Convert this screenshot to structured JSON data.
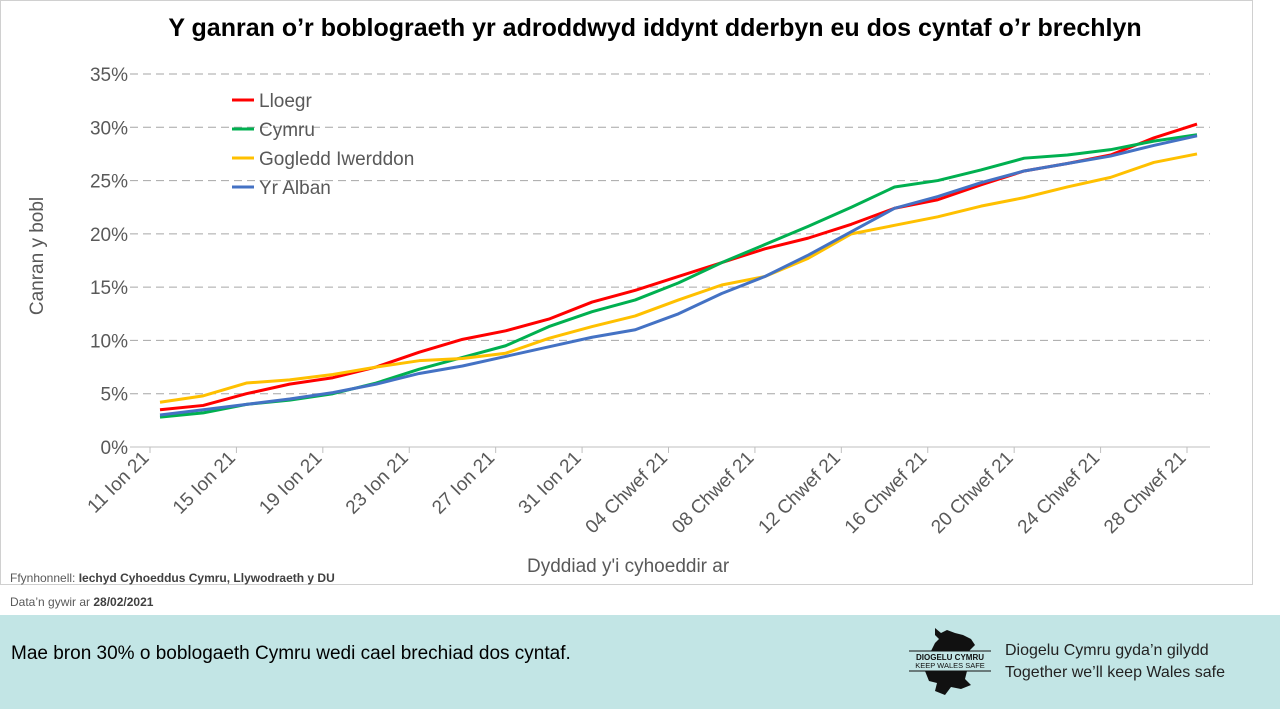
{
  "chart_data": {
    "type": "line",
    "title": "Y ganran o’r boblograeth yr adroddwyd iddynt dderbyn eu dos cyntaf o’r brechlyn",
    "xlabel": "Dyddiad y'i cyhoeddir ar",
    "ylabel": "Canran y bobl",
    "ylim": [
      0,
      35
    ],
    "yticks": [
      "0%",
      "5%",
      "10%",
      "15%",
      "20%",
      "25%",
      "30%",
      "35%"
    ],
    "grid": true,
    "legend": "top-left",
    "x": [
      "11 Ion 21",
      "13 Ion 21",
      "15 Ion 21",
      "17 Ion 21",
      "19 Ion 21",
      "21 Ion 21",
      "23 Ion 21",
      "25 Ion 21",
      "27 Ion 21",
      "29 Ion 21",
      "31 Ion 21",
      "02 Chwef 21",
      "04 Chwef 21",
      "06 Chwef 21",
      "08 Chwef 21",
      "10 Chwef 21",
      "12 Chwef 21",
      "14 Chwef 21",
      "16 Chwef 21",
      "18 Chwef 21",
      "20 Chwef 21",
      "22 Chwef 21",
      "24 Chwef 21",
      "26 Chwef 21",
      "28 Chwef 21"
    ],
    "xticks": [
      "11 Ion 21",
      "15 Ion 21",
      "19 Ion 21",
      "23 Ion 21",
      "27 Ion 21",
      "31 Ion 21",
      "04 Chwef 21",
      "08 Chwef 21",
      "12 Chwef 21",
      "16 Chwef 21",
      "20 Chwef 21",
      "24 Chwef 21",
      "28 Chwef 21"
    ],
    "series": [
      {
        "name": "Lloegr",
        "color": "#ff0000",
        "values": [
          3.5,
          3.9,
          5.0,
          5.9,
          6.5,
          7.5,
          8.9,
          10.1,
          10.9,
          12.0,
          13.6,
          14.7,
          16.0,
          17.3,
          18.6,
          19.6,
          20.9,
          22.4,
          23.2,
          24.6,
          25.9,
          26.6,
          27.4,
          29.0,
          30.3
        ]
      },
      {
        "name": "Cymru",
        "color": "#00b050",
        "values": [
          2.8,
          3.2,
          4.0,
          4.4,
          5.0,
          6.0,
          7.3,
          8.4,
          9.5,
          11.3,
          12.7,
          13.8,
          15.4,
          17.3,
          19.0,
          20.7,
          22.5,
          24.4,
          25.0,
          26.0,
          27.1,
          27.4,
          27.9,
          28.7,
          29.3
        ]
      },
      {
        "name": "Gogledd Iwerddon",
        "color": "#ffc000",
        "values": [
          4.2,
          4.8,
          6.0,
          6.3,
          6.8,
          7.5,
          8.1,
          8.3,
          8.8,
          10.2,
          11.3,
          12.3,
          13.8,
          15.2,
          16.0,
          17.7,
          20.0,
          20.8,
          21.6,
          22.6,
          23.4,
          24.4,
          25.3,
          26.7,
          27.5
        ]
      },
      {
        "name": "Yr Alban",
        "color": "#4472c4",
        "values": [
          3.0,
          3.5,
          4.0,
          4.5,
          5.1,
          5.9,
          6.9,
          7.6,
          8.5,
          9.4,
          10.3,
          11.0,
          12.5,
          14.4,
          16.0,
          18.0,
          20.2,
          22.4,
          23.5,
          24.8,
          25.9,
          26.6,
          27.3,
          28.3,
          29.2
        ]
      }
    ]
  },
  "source": {
    "label": "Ffynhonnell:",
    "value": "Iechyd Cyhoeddus Cymru, Llywodraeth y DU"
  },
  "date": {
    "label": "Data’n gywir ar",
    "value": "28/02/2021"
  },
  "footer": {
    "message": "Mae bron 30% o boblogaeth Cymru wedi cael brechiad dos cyntaf.",
    "logo_text_1": "DIOGELU CYMRU",
    "logo_text_2": "KEEP WALES SAFE",
    "tagline_1": "Diogelu Cymru gyda’n gilydd",
    "tagline_2": "Together we’ll keep Wales safe"
  }
}
